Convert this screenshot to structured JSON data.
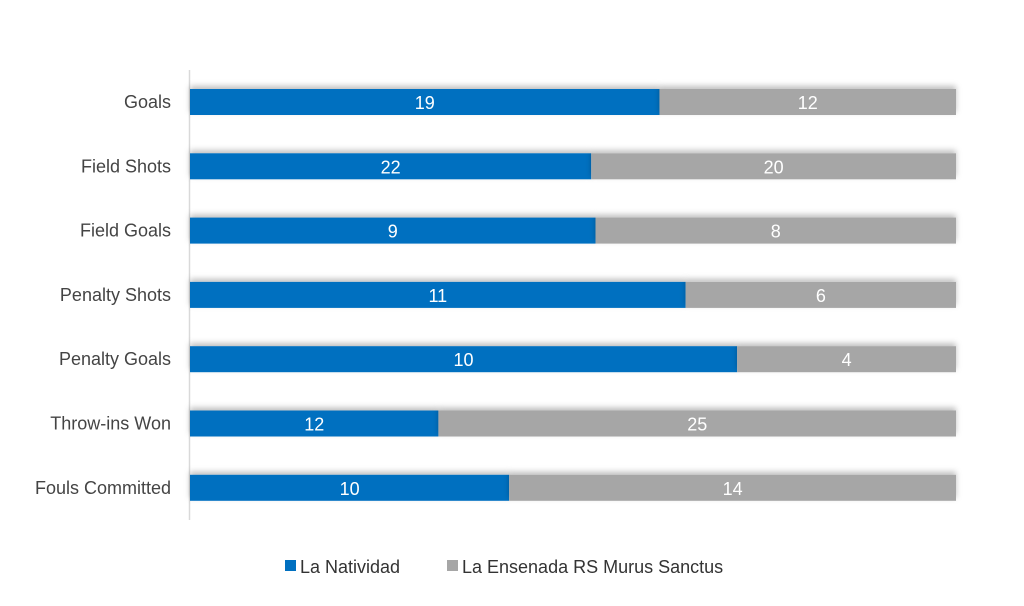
{
  "chart_data": {
    "type": "bar",
    "orientation": "horizontal",
    "stacked": "percent",
    "categories": [
      "Goals",
      "Field Shots",
      "Field Goals",
      "Penalty Shots",
      "Penalty Goals",
      "Throw-ins Won",
      "Fouls Committed"
    ],
    "series": [
      {
        "name": "La Natividad",
        "color": "#0070C0",
        "values": [
          19,
          22,
          9,
          11,
          10,
          12,
          10
        ]
      },
      {
        "name": "La Ensenada RS Murus Sanctus",
        "color": "#A6A6A6",
        "values": [
          12,
          20,
          8,
          6,
          4,
          25,
          14
        ]
      }
    ],
    "title": "",
    "xlabel": "",
    "ylabel": "",
    "grid": false,
    "legend": "bottom"
  }
}
